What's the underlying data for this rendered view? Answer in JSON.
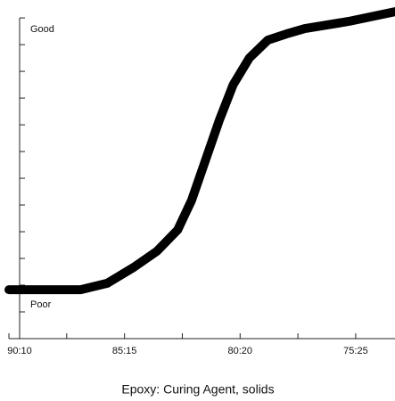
{
  "chart_data": {
    "type": "line",
    "xlabel": "Epoxy: Curing Agent, solids",
    "annotations": [
      "Good",
      "Poor"
    ],
    "x": [
      90,
      86.9,
      85.75,
      84.6,
      83.6,
      82.7,
      82.1,
      81.5,
      80.9,
      80.3,
      79.6,
      78.8,
      78.0,
      77.2,
      75.3,
      73.3
    ],
    "series": [
      {
        "color": "#000000",
        "values": [
          1.83,
          1.83,
          2.07,
          2.67,
          3.27,
          4.07,
          5.17,
          6.67,
          8.17,
          9.5,
          10.5,
          11.17,
          11.4,
          11.6,
          11.87,
          12.23
        ]
      }
    ],
    "xlim": [
      90,
      73.3
    ],
    "xticks": [
      {
        "value": 90,
        "label": "90:10"
      },
      {
        "value": 85,
        "label": "85:15"
      },
      {
        "value": 80,
        "label": "80:20"
      },
      {
        "value": 75,
        "label": "75:25"
      }
    ],
    "xminorticks": [
      87.5,
      82.5,
      77.5
    ],
    "ylim": [
      0,
      12.67
    ],
    "ytickmarks": [
      0,
      1,
      2,
      3,
      4,
      5,
      6,
      7,
      8,
      9,
      10,
      11,
      12
    ]
  }
}
